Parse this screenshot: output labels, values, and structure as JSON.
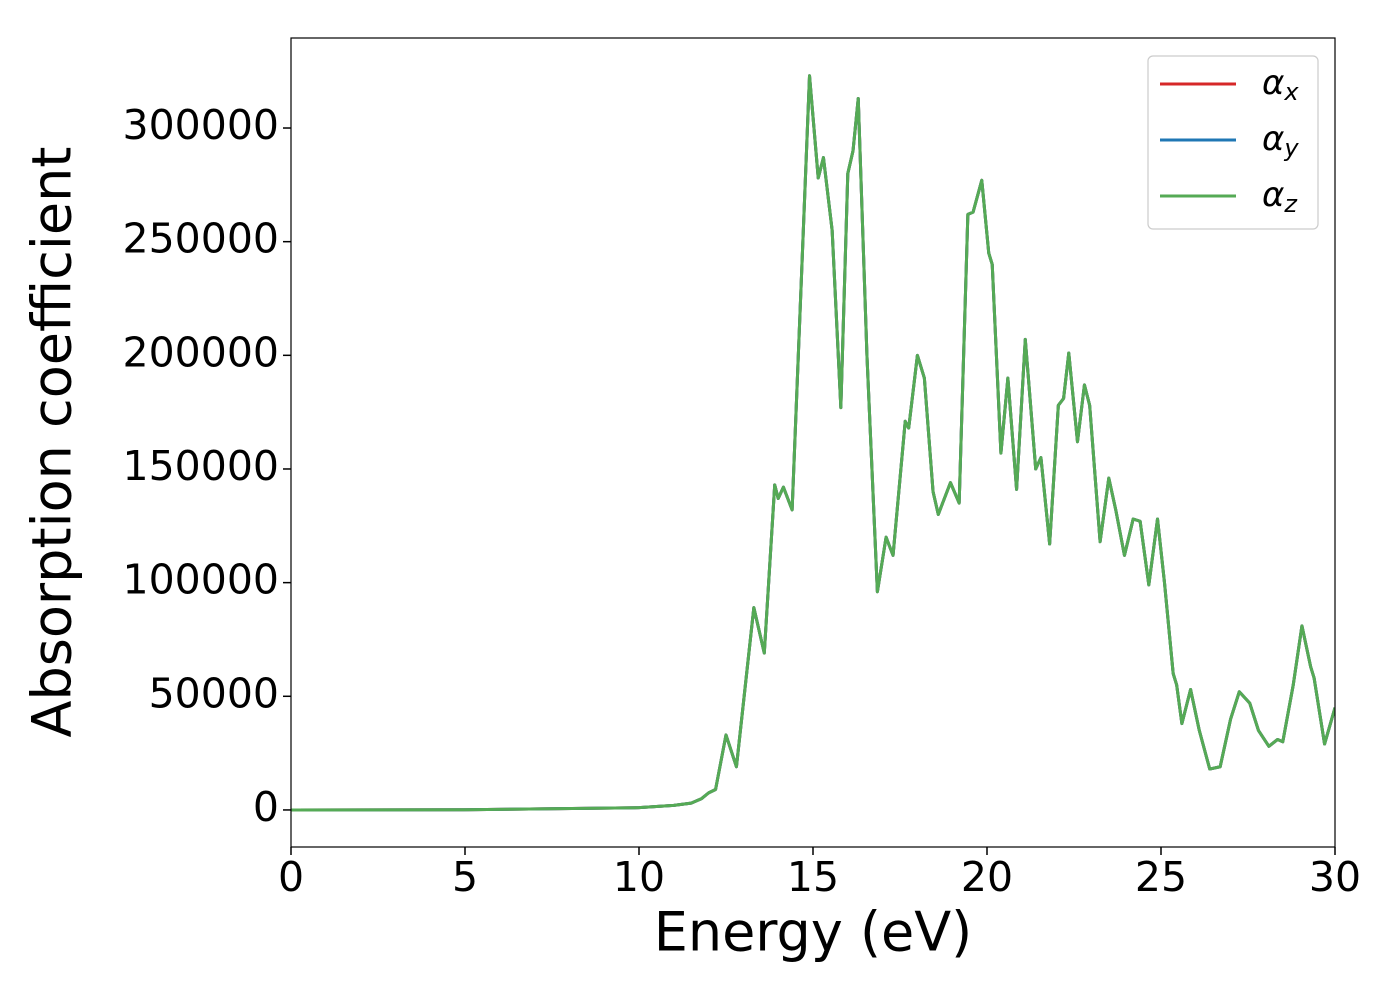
{
  "chart_data": {
    "type": "line",
    "xlabel": "Energy (eV)",
    "ylabel": "Absorption coefficient",
    "xlim": [
      0,
      30
    ],
    "xticks": [
      0,
      5,
      10,
      15,
      20,
      25,
      30
    ],
    "ylim": [
      -16300,
      339600
    ],
    "yticks": [
      0,
      50000,
      100000,
      150000,
      200000,
      250000,
      300000
    ],
    "legend": "upper right",
    "x": [
      0,
      5,
      10,
      11,
      11.5,
      11.8,
      12.0,
      12.2,
      12.5,
      12.8,
      13.3,
      13.6,
      13.9,
      14.0,
      14.15,
      14.4,
      14.9,
      15.15,
      15.3,
      15.55,
      15.8,
      16.0,
      16.15,
      16.3,
      16.55,
      16.85,
      17.1,
      17.3,
      17.65,
      17.75,
      18.0,
      18.2,
      18.45,
      18.6,
      18.95,
      19.2,
      19.45,
      19.6,
      19.85,
      20.05,
      20.15,
      20.4,
      20.6,
      20.85,
      21.1,
      21.4,
      21.55,
      21.8,
      22.05,
      22.2,
      22.35,
      22.6,
      22.8,
      22.95,
      23.25,
      23.5,
      23.7,
      23.95,
      24.2,
      24.4,
      24.65,
      24.9,
      25.1,
      25.35,
      25.45,
      25.6,
      25.85,
      26.1,
      26.4,
      26.7,
      27.0,
      27.25,
      27.55,
      27.8,
      28.1,
      28.35,
      28.5,
      28.8,
      29.05,
      29.3,
      29.4,
      29.7,
      30
    ],
    "series": [
      {
        "name": "αx",
        "color": "#d62728",
        "values": [
          0,
          100,
          1000,
          2000,
          3000,
          5000,
          7500,
          9000,
          33000,
          19000,
          89000,
          69000,
          143000,
          137000,
          142000,
          132000,
          323000,
          278000,
          287000,
          255000,
          177000,
          280000,
          290000,
          313000,
          200000,
          96000,
          120000,
          112000,
          171000,
          168000,
          200000,
          190000,
          140000,
          130000,
          144000,
          135000,
          262000,
          263000,
          277000,
          245000,
          240000,
          157000,
          190000,
          141000,
          207000,
          150000,
          155000,
          117000,
          178000,
          181000,
          201000,
          162000,
          187000,
          178000,
          118000,
          146000,
          132000,
          112000,
          128000,
          127000,
          99000,
          128000,
          100000,
          60000,
          55000,
          38000,
          53000,
          35000,
          18000,
          19000,
          40000,
          52000,
          47000,
          35000,
          28000,
          31000,
          30000,
          55000,
          81000,
          63000,
          58000,
          29000,
          45000
        ]
      },
      {
        "name": "αy",
        "color": "#1f77b4",
        "values": [
          0,
          100,
          1000,
          2000,
          3000,
          5000,
          7500,
          9000,
          33000,
          19000,
          89000,
          69000,
          143000,
          137000,
          142000,
          132000,
          323000,
          278000,
          287000,
          255000,
          177000,
          280000,
          290000,
          313000,
          200000,
          96000,
          120000,
          112000,
          171000,
          168000,
          200000,
          190000,
          140000,
          130000,
          144000,
          135000,
          262000,
          263000,
          277000,
          245000,
          240000,
          157000,
          190000,
          141000,
          207000,
          150000,
          155000,
          117000,
          178000,
          181000,
          201000,
          162000,
          187000,
          178000,
          118000,
          146000,
          132000,
          112000,
          128000,
          127000,
          99000,
          128000,
          100000,
          60000,
          55000,
          38000,
          53000,
          35000,
          18000,
          19000,
          40000,
          52000,
          47000,
          35000,
          28000,
          31000,
          30000,
          55000,
          81000,
          63000,
          58000,
          29000,
          45000
        ]
      },
      {
        "name": "αz",
        "color": "#55aa55",
        "values": [
          0,
          100,
          1000,
          2000,
          3000,
          5000,
          7500,
          9000,
          33000,
          19000,
          89000,
          69000,
          143000,
          137000,
          142000,
          132000,
          323000,
          278000,
          287000,
          255000,
          177000,
          280000,
          290000,
          313000,
          200000,
          96000,
          120000,
          112000,
          171000,
          168000,
          200000,
          190000,
          140000,
          130000,
          144000,
          135000,
          262000,
          263000,
          277000,
          245000,
          240000,
          157000,
          190000,
          141000,
          207000,
          150000,
          155000,
          117000,
          178000,
          181000,
          201000,
          162000,
          187000,
          178000,
          118000,
          146000,
          132000,
          112000,
          128000,
          127000,
          99000,
          128000,
          100000,
          60000,
          55000,
          38000,
          53000,
          35000,
          18000,
          19000,
          40000,
          52000,
          47000,
          35000,
          28000,
          31000,
          30000,
          55000,
          81000,
          63000,
          58000,
          29000,
          45000
        ]
      }
    ]
  }
}
